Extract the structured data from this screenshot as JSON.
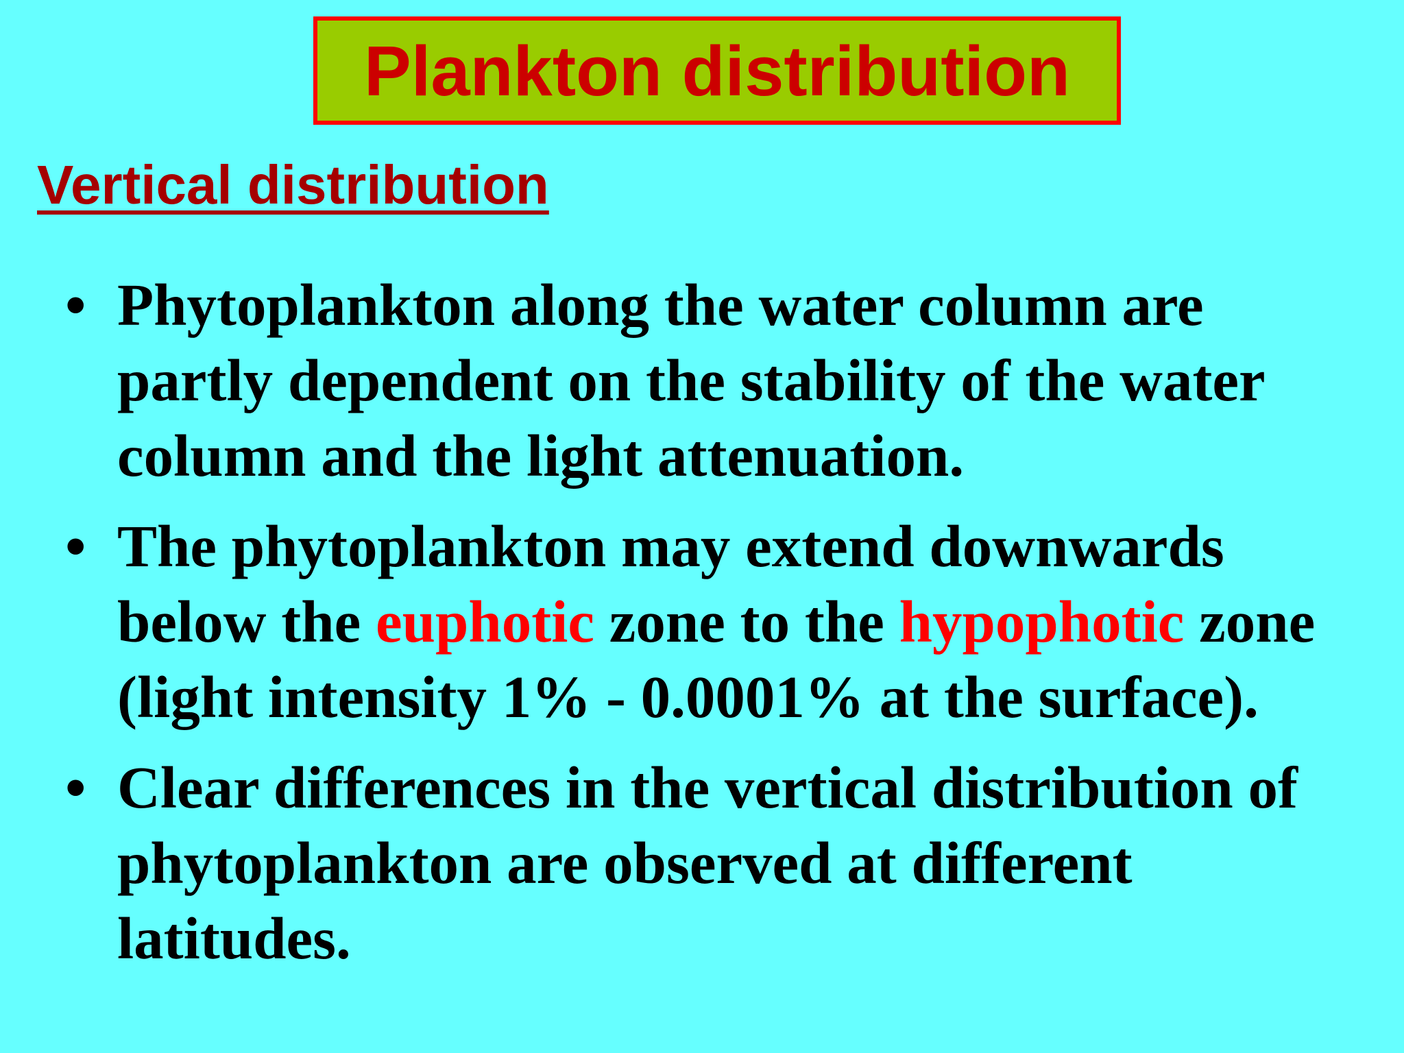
{
  "slide": {
    "title": "Plankton distribution",
    "subtitle": "Vertical distribution",
    "bullet_symbol": "•",
    "bullets": [
      {
        "text": "Phytoplankton along the water column are partly dependent on the stability of the water column and the light attenuation."
      },
      {
        "part1": "The phytoplankton may extend downwards below the ",
        "highlight1": "euphotic",
        "part2": " zone to the ",
        "highlight2": "hypophotic",
        "part3": " zone (light intensity 1%  - 0.0001% at the surface)."
      },
      {
        "text": "Clear differences in the vertical distribution of phytoplankton are observed at different latitudes."
      }
    ]
  },
  "colors": {
    "background": "#66ffff",
    "title_box_fill": "#99cc00",
    "title_box_border": "#ff0000",
    "title_text": "#cc0000",
    "subtitle_text": "#a50000",
    "body_text": "#000000",
    "highlight_text": "#ff0000"
  }
}
